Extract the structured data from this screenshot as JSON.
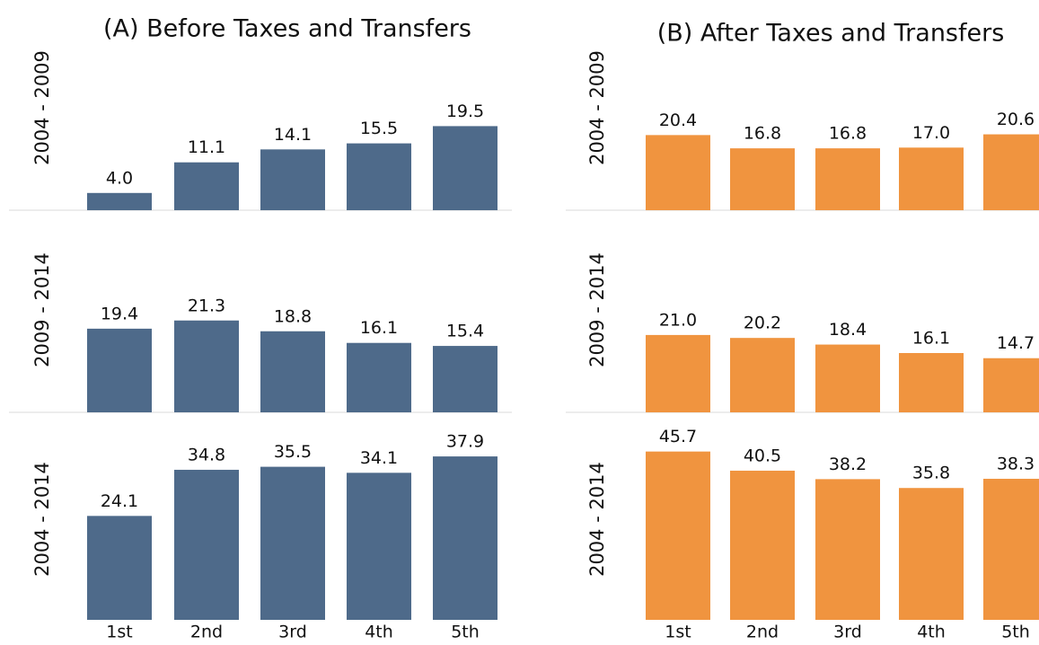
{
  "chart_data": [
    {
      "type": "bar",
      "title": "(A) Before Taxes and Transfers",
      "categories": [
        "1st",
        "2nd",
        "3rd",
        "4th",
        "5th"
      ],
      "series": [
        {
          "name": "2004 - 2009",
          "color": "#4e6a8a",
          "values": [
            4.0,
            11.1,
            14.1,
            15.5,
            19.5
          ],
          "value_labels": [
            "4.0",
            "11.1",
            "14.1",
            "15.5",
            "19.5"
          ]
        },
        {
          "name": "2009 - 2014",
          "color": "#4e6a8a",
          "values": [
            19.4,
            21.3,
            18.8,
            16.1,
            15.4
          ]
        },
        {
          "name": "2004 - 2014",
          "color": "#4e6a8a",
          "values": [
            24.1,
            34.8,
            35.5,
            34.1,
            37.9
          ]
        }
      ]
    },
    {
      "type": "bar",
      "title": "(B) After Taxes and Transfers",
      "categories": [
        "1st",
        "2nd",
        "3rd",
        "4th",
        "5th"
      ],
      "series": [
        {
          "name": "2004 - 2009",
          "color": "#f0943f",
          "values": [
            20.4,
            16.8,
            16.8,
            17.0,
            20.6
          ],
          "value_labels": [
            "20.4",
            "16.8",
            "16.8",
            "17.0",
            "20.6"
          ]
        },
        {
          "name": "2009 - 2014",
          "color": "#f0943f",
          "values": [
            21.0,
            20.2,
            18.4,
            16.1,
            14.7
          ],
          "value_labels": [
            "21.0",
            "20.2",
            "18.4",
            "16.1",
            "14.7"
          ]
        },
        {
          "name": "2004 - 2014",
          "color": "#f0943f",
          "values": [
            45.7,
            40.5,
            38.2,
            35.8,
            38.3
          ]
        }
      ]
    }
  ]
}
